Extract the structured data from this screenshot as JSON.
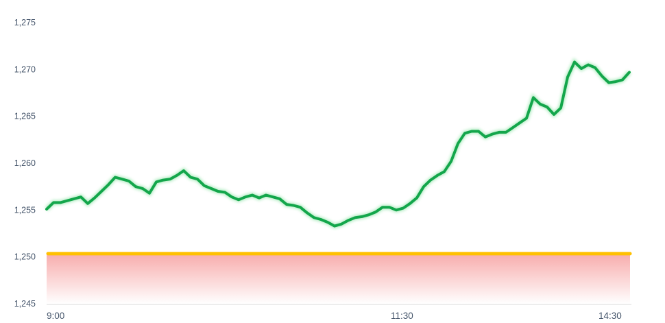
{
  "chart_data": {
    "type": "line",
    "title": "",
    "xlabel": "",
    "ylabel": "",
    "ylim": [
      1245,
      1275
    ],
    "y_ticks": [
      "1,245",
      "1,250",
      "1,255",
      "1,260",
      "1,265",
      "1,270",
      "1,275"
    ],
    "y_tick_values": [
      1245,
      1250,
      1255,
      1260,
      1265,
      1270,
      1275
    ],
    "x_ticks": [
      "9:00",
      "11:30",
      "14:30"
    ],
    "grid": false,
    "series": [
      {
        "color": "#13a64b",
        "values": [
          1255.1,
          1255.8,
          1255.8,
          1256.0,
          1256.2,
          1256.4,
          1255.7,
          1256.3,
          1257.0,
          1257.7,
          1258.5,
          1258.3,
          1258.1,
          1257.5,
          1257.3,
          1256.8,
          1258.0,
          1258.2,
          1258.3,
          1258.7,
          1259.2,
          1258.5,
          1258.3,
          1257.6,
          1257.3,
          1257.0,
          1256.9,
          1256.4,
          1256.1,
          1256.4,
          1256.6,
          1256.3,
          1256.6,
          1256.4,
          1256.2,
          1255.6,
          1255.5,
          1255.3,
          1254.7,
          1254.2,
          1254.0,
          1253.7,
          1253.3,
          1253.5,
          1253.9,
          1254.2,
          1254.3,
          1254.5,
          1254.8,
          1255.3,
          1255.3,
          1255.0,
          1255.2,
          1255.7,
          1256.3,
          1257.5,
          1258.2,
          1258.7,
          1259.1,
          1260.2,
          1262.1,
          1263.2,
          1263.4,
          1263.4,
          1262.8,
          1263.1,
          1263.3,
          1263.3,
          1263.8,
          1264.3,
          1264.8,
          1267.0,
          1266.3,
          1266.0,
          1265.2,
          1265.9,
          1269.2,
          1270.8,
          1270.1,
          1270.5,
          1270.2,
          1269.3,
          1268.6,
          1268.7,
          1268.9,
          1269.7
        ]
      }
    ],
    "reference_line": {
      "value": 1250.35,
      "color": "#ffc000",
      "fill_below_color": "#f7a8a8"
    }
  }
}
